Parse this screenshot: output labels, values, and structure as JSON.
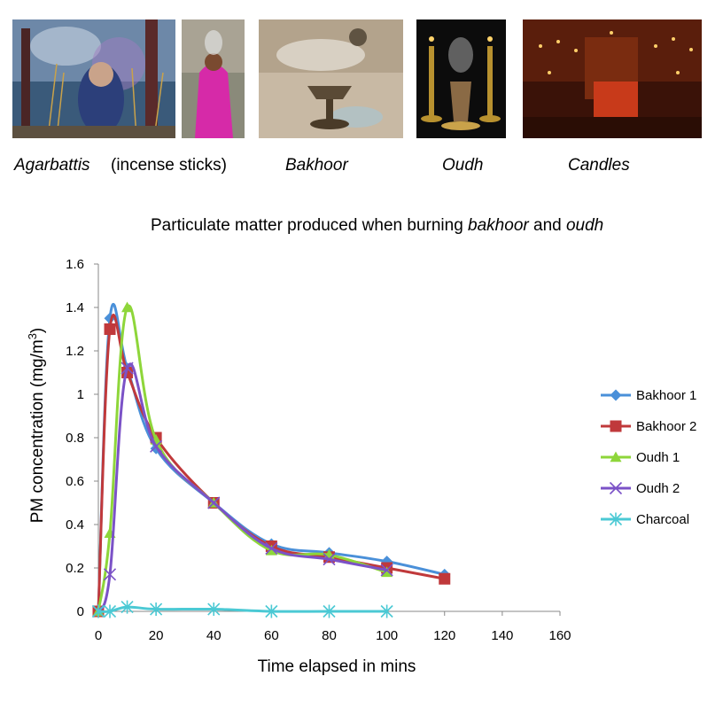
{
  "photos": [
    {
      "name": "agarbattis-photo",
      "alt": "Agarbattis"
    },
    {
      "name": "incense-woman-photo",
      "alt": "incense sticks"
    },
    {
      "name": "bakhoor-photo",
      "alt": "Bakhoor"
    },
    {
      "name": "oudh-photo",
      "alt": "Oudh"
    },
    {
      "name": "candles-photo",
      "alt": "Candles"
    }
  ],
  "captions": {
    "agarbattis": "Agarbattis",
    "incense_sticks": "(incense sticks)",
    "bakhoor": "Bakhoor",
    "oudh": "Oudh",
    "candles": "Candles"
  },
  "title": {
    "prefix": "Particulate matter produced when burning ",
    "term1": "bakhoor",
    "middle": " and ",
    "term2": "oudh"
  },
  "chart_data": {
    "type": "line",
    "xlabel": "Time elapsed in mins",
    "ylabel_main": "PM concentration (mg/m",
    "ylabel_sup": "3",
    "ylabel_end": ")",
    "xlim": [
      0,
      160
    ],
    "ylim": [
      0,
      1.6
    ],
    "xticks": [
      0,
      20,
      40,
      60,
      80,
      100,
      120,
      140,
      160
    ],
    "yticks": [
      0,
      0.2,
      0.4,
      0.6,
      0.8,
      1,
      1.2,
      1.4,
      1.6
    ],
    "ytick_labels": [
      "0",
      "0.2",
      "0.4",
      "0.6",
      "0.8",
      "1",
      "1.2",
      "1.4",
      "1.6"
    ],
    "grid": false,
    "legend_position": "right",
    "series": [
      {
        "name": "Bakhoor 1",
        "color": "#4a90d9",
        "marker": "diamond",
        "x": [
          0,
          4,
          10,
          20,
          40,
          60,
          80,
          100,
          120
        ],
        "y": [
          0,
          1.35,
          1.12,
          0.75,
          0.5,
          0.31,
          0.27,
          0.23,
          0.17
        ]
      },
      {
        "name": "Bakhoor 2",
        "color": "#c0393b",
        "marker": "square",
        "x": [
          0,
          4,
          10,
          20,
          40,
          60,
          80,
          100,
          120
        ],
        "y": [
          0,
          1.3,
          1.1,
          0.8,
          0.5,
          0.3,
          0.25,
          0.2,
          0.15
        ]
      },
      {
        "name": "Oudh 1",
        "color": "#8ed63a",
        "marker": "triangle",
        "x": [
          0,
          4,
          10,
          20,
          40,
          60,
          80,
          100
        ],
        "y": [
          0,
          0.36,
          1.4,
          0.79,
          0.5,
          0.28,
          0.26,
          0.18
        ]
      },
      {
        "name": "Oudh 2",
        "color": "#7b52c7",
        "marker": "x",
        "x": [
          0,
          4,
          10,
          20,
          40,
          60,
          80,
          100
        ],
        "y": [
          0,
          0.17,
          1.12,
          0.76,
          0.5,
          0.29,
          0.24,
          0.19
        ]
      },
      {
        "name": "Charcoal",
        "color": "#4bc9d4",
        "marker": "star",
        "x": [
          0,
          4,
          10,
          20,
          40,
          60,
          80,
          100
        ],
        "y": [
          0,
          0,
          0.02,
          0.01,
          0.01,
          0,
          0,
          0
        ]
      }
    ]
  }
}
